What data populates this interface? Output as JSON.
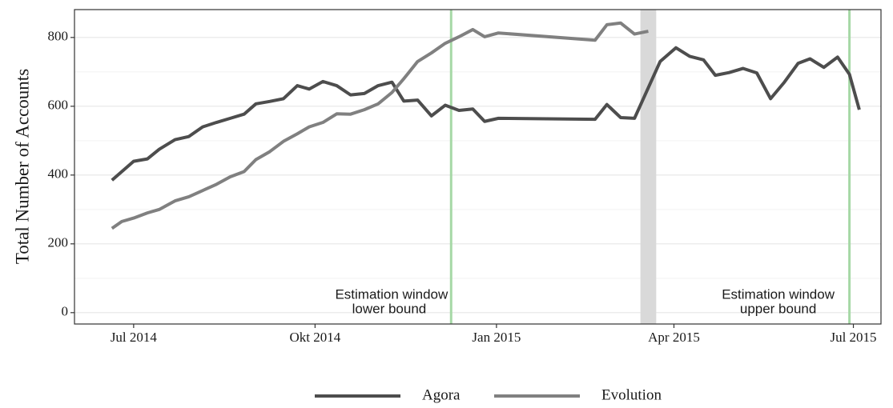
{
  "chart_data": {
    "type": "line",
    "y_label": "Total Number of Accounts",
    "xlim": [
      "2014-06-01",
      "2015-07-15"
    ],
    "xticks": [
      {
        "value": "2014-07-01",
        "label": "Jul 2014"
      },
      {
        "value": "2014-10-01",
        "label": "Okt 2014"
      },
      {
        "value": "2015-01-01",
        "label": "Jan 2015"
      },
      {
        "value": "2015-04-01",
        "label": "Apr 2015"
      },
      {
        "value": "2015-07-01",
        "label": "Jul 2015"
      }
    ],
    "ylim": [
      -33,
      881
    ],
    "yticks": [
      0,
      200,
      400,
      600,
      800
    ],
    "yminor": [
      100,
      300,
      500,
      700
    ],
    "grid": true,
    "legend": "bottom",
    "bands": [
      {
        "x": [
          "2015-03-15",
          "2015-03-23"
        ],
        "color": "#d9d9d9"
      }
    ],
    "vlines": [
      {
        "x": "2014-12-09",
        "color": "#a6d8a6",
        "label": [
          "Estimation window",
          "lower bound"
        ]
      },
      {
        "x": "2015-06-29",
        "color": "#a6d8a6",
        "label": [
          "Estimation window",
          "upper bound"
        ]
      }
    ],
    "series": [
      {
        "name": "Agora",
        "color": "#4d4d4d",
        "x": [
          "2014-06-20",
          "2014-06-25",
          "2014-07-01",
          "2014-07-08",
          "2014-07-14",
          "2014-07-22",
          "2014-07-29",
          "2014-08-05",
          "2014-08-12",
          "2014-08-19",
          "2014-08-26",
          "2014-09-01",
          "2014-09-08",
          "2014-09-15",
          "2014-09-22",
          "2014-09-28",
          "2014-10-05",
          "2014-10-12",
          "2014-10-19",
          "2014-10-26",
          "2014-11-02",
          "2014-11-09",
          "2014-11-15",
          "2014-11-22",
          "2014-11-29",
          "2014-12-06",
          "2014-12-13",
          "2014-12-20",
          "2014-12-26",
          "2015-01-02",
          "2015-02-20",
          "2015-02-26",
          "2015-03-05",
          "2015-03-12",
          "2015-03-25",
          "2015-04-02",
          "2015-04-09",
          "2015-04-16",
          "2015-04-22",
          "2015-04-29",
          "2015-05-06",
          "2015-05-13",
          "2015-05-20",
          "2015-05-27",
          "2015-06-03",
          "2015-06-09",
          "2015-06-16",
          "2015-06-23",
          "2015-06-29",
          "2015-07-04"
        ],
        "values": [
          385,
          410,
          440,
          447,
          475,
          503,
          512,
          540,
          553,
          565,
          577,
          607,
          614,
          622,
          660,
          650,
          672,
          660,
          633,
          637,
          660,
          670,
          615,
          618,
          572,
          603,
          588,
          592,
          556,
          565,
          562,
          605,
          567,
          565,
          730,
          770,
          745,
          735,
          690,
          698,
          710,
          697,
          622,
          670,
          725,
          738,
          713,
          743,
          693,
          590
        ]
      },
      {
        "name": "Evolution",
        "color": "#808080",
        "x": [
          "2014-06-20",
          "2014-06-25",
          "2014-07-01",
          "2014-07-08",
          "2014-07-14",
          "2014-07-22",
          "2014-07-29",
          "2014-08-05",
          "2014-08-12",
          "2014-08-19",
          "2014-08-26",
          "2014-09-01",
          "2014-09-08",
          "2014-09-15",
          "2014-09-22",
          "2014-09-28",
          "2014-10-05",
          "2014-10-12",
          "2014-10-19",
          "2014-10-26",
          "2014-11-02",
          "2014-11-09",
          "2014-11-15",
          "2014-11-22",
          "2014-11-29",
          "2014-12-06",
          "2014-12-13",
          "2014-12-20",
          "2014-12-26",
          "2015-01-02",
          "2015-02-20",
          "2015-02-26",
          "2015-03-05",
          "2015-03-12",
          "2015-03-19"
        ],
        "values": [
          245,
          265,
          275,
          290,
          300,
          325,
          337,
          355,
          373,
          395,
          410,
          445,
          468,
          498,
          520,
          540,
          553,
          578,
          577,
          590,
          607,
          640,
          680,
          730,
          755,
          783,
          802,
          823,
          802,
          813,
          792,
          837,
          842,
          810,
          818
        ]
      }
    ]
  }
}
